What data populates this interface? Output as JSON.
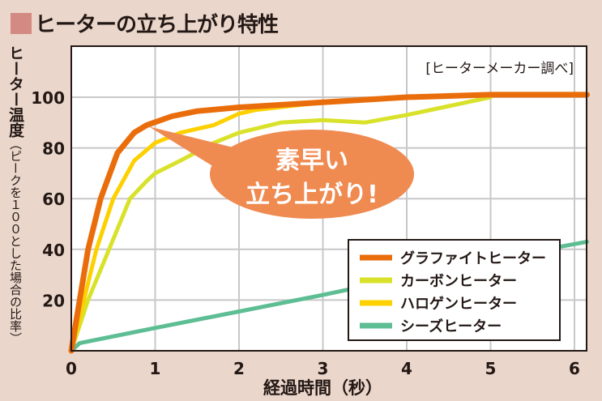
{
  "title": "ヒーターの立ち上がり特性",
  "colors": {
    "background": "#ead6ca",
    "title_square": "#d28a82",
    "callout": "#ef8a50"
  },
  "chart_data": {
    "type": "line",
    "title": "ヒーターの立ち上がり特性",
    "xlabel": "経過時間（秒）",
    "ylabel_main": "ヒーター温度",
    "ylabel_sub": "（ピークを１００とした場合の比率）",
    "source_note": "[ヒーターメーカー調べ]",
    "annotation": {
      "line1": "素早い",
      "line2": "立ち上がり!",
      "points_to": [
        0.9,
        89
      ]
    },
    "xlim": [
      0,
      6.15
    ],
    "ylim": [
      0,
      100
    ],
    "xticks": [
      0,
      1,
      2,
      3,
      4,
      5,
      6
    ],
    "yticks": [
      20,
      40,
      60,
      80,
      100
    ],
    "grid": true,
    "legend_position": "bottom-right",
    "series": [
      {
        "name": "グラファイトヒーター",
        "color": "#ea6d0c",
        "x": [
          0,
          0.1,
          0.2,
          0.35,
          0.55,
          0.75,
          0.9,
          1.2,
          1.5,
          2,
          3,
          4,
          5,
          6.15
        ],
        "y": [
          0,
          20,
          40,
          60,
          78,
          86,
          89,
          92.5,
          94.5,
          96,
          98,
          100,
          101,
          101
        ]
      },
      {
        "name": "カーボンヒーター",
        "color": "#d9e22a",
        "x": [
          0,
          0.2,
          0.45,
          0.7,
          0.9,
          1,
          1.3,
          1.7,
          2,
          2.5,
          3,
          3.5,
          4,
          4.5,
          5
        ],
        "y": [
          0,
          20,
          40,
          60,
          67,
          70,
          75,
          82,
          86,
          90,
          91,
          90,
          93,
          96.5,
          100
        ]
      },
      {
        "name": "ハロゲンヒーター",
        "color": "#fdd000",
        "x": [
          0,
          0.15,
          0.3,
          0.5,
          0.75,
          1,
          1.3,
          1.7,
          2,
          2.2,
          3,
          4,
          5
        ],
        "y": [
          0,
          20,
          40,
          60,
          75,
          82,
          86,
          89,
          93.5,
          95,
          98,
          100,
          101
        ]
      },
      {
        "name": "シーズヒーター",
        "color": "#5dbd93",
        "x": [
          0,
          0.1,
          1,
          2,
          3,
          4,
          5,
          6.15
        ],
        "y": [
          0,
          3,
          9,
          15.5,
          22,
          29,
          36,
          43
        ]
      }
    ]
  }
}
